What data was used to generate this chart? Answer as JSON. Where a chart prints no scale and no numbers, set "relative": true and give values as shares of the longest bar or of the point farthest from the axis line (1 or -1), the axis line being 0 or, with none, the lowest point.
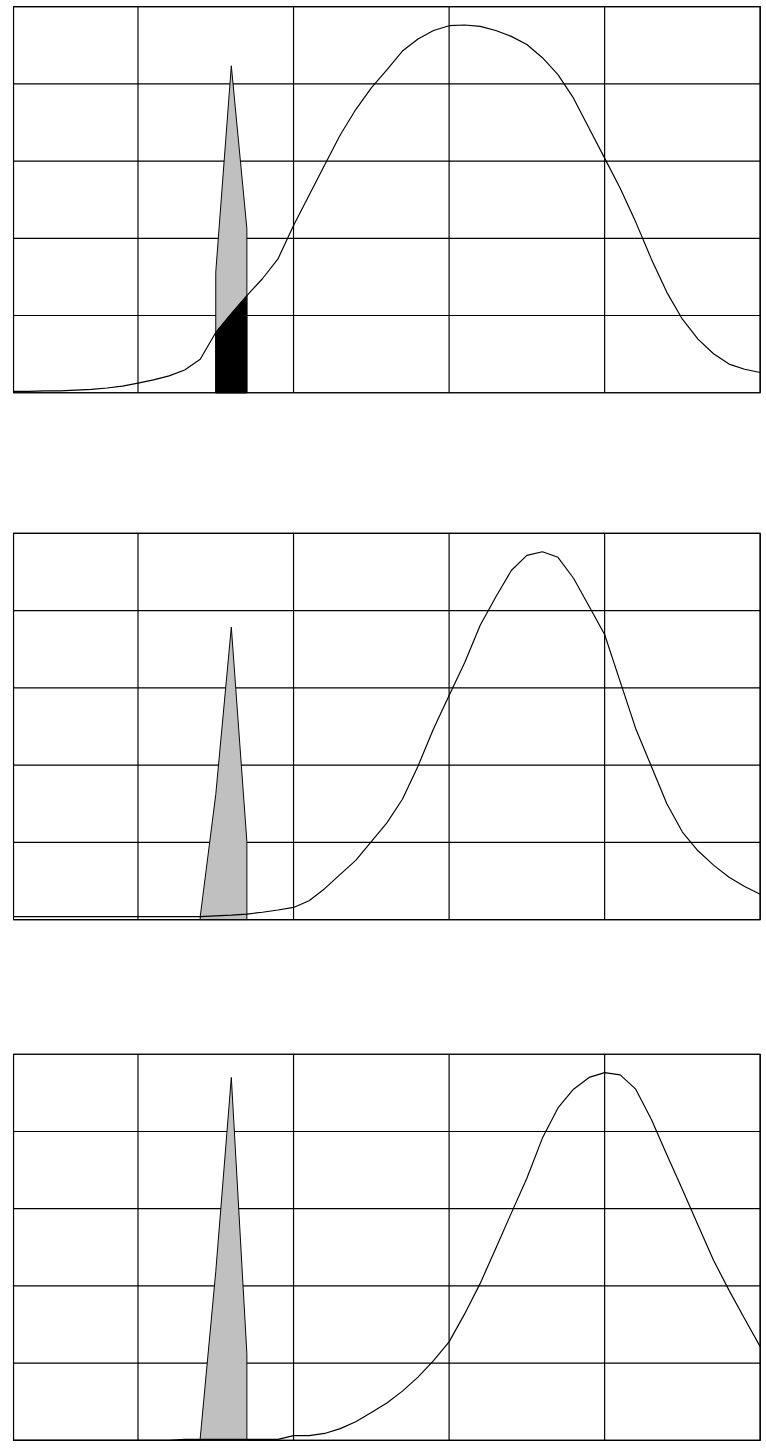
{
  "chart_data": [
    {
      "type": "line",
      "relative": true,
      "grid": true,
      "categories": [
        null,
        null,
        null,
        null,
        null,
        null,
        null,
        null,
        null,
        null,
        null,
        null,
        null,
        null,
        null,
        null,
        null,
        null,
        null,
        null,
        null,
        null,
        null,
        null,
        null,
        null,
        null,
        null,
        null,
        null,
        null,
        null,
        null,
        null,
        null,
        null,
        null,
        null,
        null,
        null,
        null,
        null,
        null,
        null,
        null,
        null,
        null,
        null,
        null
      ],
      "series": [
        {
          "type": "area",
          "color": "#c0c0c0",
          "values": [
            null,
            null,
            null,
            null,
            null,
            null,
            null,
            null,
            null,
            null,
            null,
            null,
            null,
            0.328,
            0.889,
            0.446,
            null,
            null,
            null,
            null,
            null,
            null,
            null,
            null,
            null,
            null,
            null,
            null,
            null,
            null,
            null,
            null,
            null,
            null,
            null,
            null,
            null,
            null,
            null,
            null,
            null,
            null,
            null,
            null,
            null,
            null,
            null,
            null,
            null
          ]
        },
        {
          "type": "area",
          "color": "#000000",
          "values": [
            null,
            null,
            null,
            null,
            null,
            null,
            null,
            null,
            null,
            null,
            null,
            null,
            null,
            0.164,
            0.215,
            0.264,
            null,
            null,
            null,
            null,
            null,
            null,
            null,
            null,
            null,
            null,
            null,
            null,
            null,
            null,
            null,
            null,
            null,
            null,
            null,
            null,
            null,
            null,
            null,
            null,
            null,
            null,
            null,
            null,
            null,
            null,
            null,
            null,
            null
          ]
        },
        {
          "color": "#000000",
          "values": [
            0.004,
            0.004,
            0.005,
            0.005,
            0.007,
            0.009,
            0.013,
            0.018,
            0.026,
            0.035,
            0.046,
            0.062,
            0.091,
            0.164,
            0.215,
            0.264,
            0.31,
            0.364,
            0.455,
            0.537,
            0.619,
            0.701,
            0.77,
            0.829,
            0.878,
            0.929,
            0.962,
            0.985,
            0.998,
            1.0,
            0.996,
            0.985,
            0.969,
            0.947,
            0.911,
            0.865,
            0.801,
            0.719,
            0.638,
            0.556,
            0.464,
            0.364,
            0.273,
            0.2,
            0.146,
            0.106,
            0.078,
            0.064,
            0.055
          ]
        }
      ]
    },
    {
      "type": "line",
      "relative": true,
      "grid": true,
      "categories": [
        null,
        null,
        null,
        null,
        null,
        null,
        null,
        null,
        null,
        null,
        null,
        null,
        null,
        null,
        null,
        null,
        null,
        null,
        null,
        null,
        null,
        null,
        null,
        null,
        null,
        null,
        null,
        null,
        null,
        null,
        null,
        null,
        null,
        null,
        null,
        null,
        null,
        null,
        null,
        null,
        null,
        null,
        null,
        null,
        null,
        null,
        null,
        null,
        null
      ],
      "series": [
        {
          "type": "area",
          "color": "#c0c0c0",
          "values": [
            null,
            null,
            null,
            null,
            null,
            null,
            null,
            null,
            null,
            null,
            null,
            null,
            0.008,
            0.34,
            0.795,
            0.212,
            null,
            null,
            null,
            null,
            null,
            null,
            null,
            null,
            null,
            null,
            null,
            null,
            null,
            null,
            null,
            null,
            null,
            null,
            null,
            null,
            null,
            null,
            null,
            null,
            null,
            null,
            null,
            null,
            null,
            null,
            null,
            null,
            null
          ]
        },
        {
          "color": "#000000",
          "values": [
            0.008,
            0.008,
            0.008,
            0.008,
            0.008,
            0.008,
            0.008,
            0.008,
            0.008,
            0.008,
            0.008,
            0.008,
            0.008,
            0.01,
            0.012,
            0.015,
            0.02,
            0.026,
            0.033,
            0.051,
            0.084,
            0.123,
            0.161,
            0.212,
            0.263,
            0.327,
            0.417,
            0.519,
            0.609,
            0.698,
            0.8,
            0.877,
            0.949,
            0.99,
            1.0,
            0.985,
            0.928,
            0.852,
            0.775,
            0.647,
            0.519,
            0.417,
            0.315,
            0.238,
            0.187,
            0.148,
            0.115,
            0.09,
            0.069
          ]
        }
      ]
    },
    {
      "type": "line",
      "relative": true,
      "grid": true,
      "categories": [
        null,
        null,
        null,
        null,
        null,
        null,
        null,
        null,
        null,
        null,
        null,
        null,
        null,
        null,
        null,
        null,
        null,
        null,
        null,
        null,
        null,
        null,
        null,
        null,
        null,
        null,
        null,
        null,
        null,
        null,
        null,
        null,
        null,
        null,
        null,
        null,
        null,
        null,
        null,
        null,
        null,
        null,
        null,
        null,
        null,
        null,
        null,
        null,
        null
      ],
      "series": [
        {
          "type": "area",
          "color": "#c0c0c0",
          "values": [
            null,
            null,
            null,
            null,
            null,
            null,
            null,
            null,
            null,
            null,
            null,
            null,
            0.006,
            0.459,
            0.987,
            0.236,
            null,
            null,
            null,
            null,
            null,
            null,
            null,
            null,
            null,
            null,
            null,
            null,
            null,
            null,
            null,
            null,
            null,
            null,
            null,
            null,
            null,
            null,
            null,
            null,
            null,
            null,
            null,
            null,
            null,
            null,
            null,
            null,
            null
          ]
        },
        {
          "color": "#000000",
          "values": [
            0,
            0,
            0,
            0,
            0,
            0,
            0,
            0,
            0,
            0,
            0,
            0.003,
            0.003,
            0.003,
            0.003,
            0.003,
            0.003,
            0.003,
            0.013,
            0.013,
            0.019,
            0.032,
            0.051,
            0.076,
            0.102,
            0.134,
            0.172,
            0.217,
            0.268,
            0.344,
            0.427,
            0.522,
            0.618,
            0.713,
            0.822,
            0.904,
            0.955,
            0.987,
            1.0,
            0.994,
            0.955,
            0.873,
            0.777,
            0.682,
            0.586,
            0.49,
            0.408,
            0.331,
            0.255
          ]
        }
      ]
    }
  ]
}
